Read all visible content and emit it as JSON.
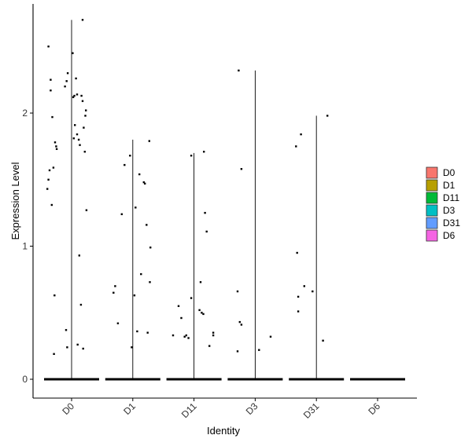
{
  "chart_data": {
    "type": "violin",
    "xlabel": "Identity",
    "ylabel": "Expression Level",
    "categories": [
      "D0",
      "D1",
      "D11",
      "D3",
      "D31",
      "D6"
    ],
    "ylim": [
      -0.15,
      2.85
    ],
    "yticks": [
      0,
      1,
      2
    ],
    "grid": false,
    "legend": {
      "position": "right",
      "entries": [
        {
          "label": "D0",
          "color": "#F8766D"
        },
        {
          "label": "D1",
          "color": "#B79F00"
        },
        {
          "label": "D11",
          "color": "#00BA38"
        },
        {
          "label": "D3",
          "color": "#00BFC4"
        },
        {
          "label": "D31",
          "color": "#619CFF"
        },
        {
          "label": "D6",
          "color": "#F564E3"
        }
      ]
    },
    "series": [
      {
        "category": "D0",
        "max": 2.7,
        "points": [
          [
            -0.42,
            2.5
          ],
          [
            -0.38,
            2.25
          ],
          [
            -0.38,
            2.17
          ],
          [
            -0.35,
            1.97
          ],
          [
            -0.4,
            1.57
          ],
          [
            -0.42,
            1.5
          ],
          [
            -0.44,
            1.43
          ],
          [
            -0.3,
            1.78
          ],
          [
            -0.28,
            1.75
          ],
          [
            -0.27,
            1.73
          ],
          [
            -0.33,
            1.59
          ],
          [
            -0.36,
            1.31
          ],
          [
            -0.31,
            0.63
          ],
          [
            -0.32,
            0.19
          ],
          [
            -0.12,
            2.2
          ],
          [
            -0.09,
            2.24
          ],
          [
            -0.07,
            2.3
          ],
          [
            -0.1,
            0.37
          ],
          [
            -0.08,
            0.24
          ],
          [
            0.02,
            2.45
          ],
          [
            0.03,
            2.12
          ],
          [
            0.05,
            2.13
          ],
          [
            0.08,
            2.26
          ],
          [
            0.1,
            2.14
          ],
          [
            0.06,
            1.91
          ],
          [
            0.04,
            1.81
          ],
          [
            0.1,
            1.84
          ],
          [
            0.13,
            1.8
          ],
          [
            0.15,
            1.76
          ],
          [
            0.18,
            2.13
          ],
          [
            0.2,
            2.09
          ],
          [
            0.22,
            1.89
          ],
          [
            0.25,
            1.98
          ],
          [
            0.26,
            2.02
          ],
          [
            0.24,
            1.71
          ],
          [
            0.27,
            1.27
          ],
          [
            0.14,
            0.93
          ],
          [
            0.17,
            0.56
          ],
          [
            0.11,
            0.26
          ],
          [
            0.21,
            0.23
          ],
          [
            0.2,
            2.7
          ]
        ]
      },
      {
        "category": "D1",
        "max": 1.8,
        "points": [
          [
            -0.15,
            1.61
          ],
          [
            -0.2,
            1.24
          ],
          [
            -0.35,
            0.65
          ],
          [
            -0.32,
            0.7
          ],
          [
            -0.27,
            0.42
          ],
          [
            -0.05,
            1.68
          ],
          [
            0.03,
            0.63
          ],
          [
            0.05,
            1.29
          ],
          [
            0.12,
            1.54
          ],
          [
            0.2,
            1.48
          ],
          [
            0.22,
            1.47
          ],
          [
            0.25,
            1.16
          ],
          [
            0.32,
            0.99
          ],
          [
            0.15,
            0.79
          ],
          [
            0.31,
            0.73
          ],
          [
            0.08,
            0.36
          ],
          [
            0.27,
            0.35
          ],
          [
            -0.02,
            0.24
          ],
          [
            0.3,
            1.79
          ]
        ]
      },
      {
        "category": "D11",
        "max": 1.7,
        "points": [
          [
            -0.05,
            1.68
          ],
          [
            0.18,
            1.71
          ],
          [
            0.2,
            1.25
          ],
          [
            0.23,
            1.11
          ],
          [
            0.12,
            0.73
          ],
          [
            -0.05,
            0.61
          ],
          [
            0.1,
            0.52
          ],
          [
            0.14,
            0.5
          ],
          [
            0.17,
            0.49
          ],
          [
            -0.28,
            0.55
          ],
          [
            -0.23,
            0.46
          ],
          [
            -0.38,
            0.33
          ],
          [
            -0.17,
            0.32
          ],
          [
            -0.14,
            0.33
          ],
          [
            -0.1,
            0.31
          ],
          [
            0.35,
            0.35
          ],
          [
            0.35,
            0.33
          ],
          [
            0.28,
            0.25
          ]
        ]
      },
      {
        "category": "D3",
        "max": 2.32,
        "points": [
          [
            -0.3,
            2.32
          ],
          [
            -0.25,
            1.58
          ],
          [
            -0.32,
            0.66
          ],
          [
            -0.28,
            0.43
          ],
          [
            -0.25,
            0.41
          ],
          [
            -0.32,
            0.21
          ],
          [
            0.07,
            0.22
          ],
          [
            0.28,
            0.32
          ]
        ]
      },
      {
        "category": "D31",
        "max": 1.98,
        "points": [
          [
            -0.37,
            1.75
          ],
          [
            -0.28,
            1.84
          ],
          [
            -0.35,
            0.95
          ],
          [
            -0.33,
            0.62
          ],
          [
            -0.33,
            0.51
          ],
          [
            -0.22,
            0.7
          ],
          [
            -0.07,
            0.66
          ],
          [
            0.12,
            0.29
          ],
          [
            0.2,
            1.98
          ]
        ]
      },
      {
        "category": "D6",
        "max": 0.0,
        "points": []
      }
    ]
  }
}
